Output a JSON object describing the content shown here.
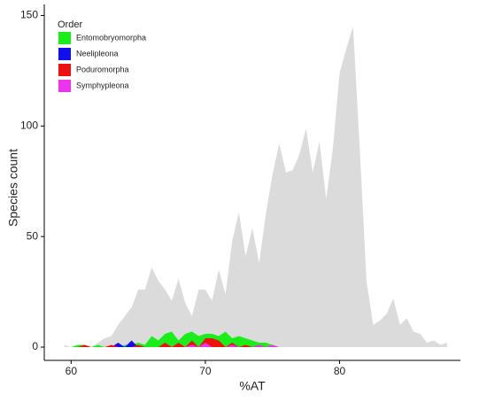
{
  "chart_data": {
    "type": "area",
    "x": [
      59.5,
      60,
      60.5,
      61,
      61.5,
      62,
      62.5,
      63,
      63.5,
      64,
      64.5,
      65,
      65.5,
      66,
      66.5,
      67,
      67.5,
      68,
      68.5,
      69,
      69.5,
      70,
      70.5,
      71,
      71.5,
      72,
      72.5,
      73,
      73.5,
      74,
      74.5,
      75,
      75.5,
      76,
      76.5,
      77,
      77.5,
      78,
      78.5,
      79,
      79.5,
      80,
      80.5,
      81,
      81.5,
      82,
      82.5,
      83,
      83.5,
      84,
      84.5,
      85,
      85.5,
      86,
      86.5,
      87,
      87.5,
      88
    ],
    "series": [
      {
        "color": "#dcdbdb",
        "values": [
          1,
          0,
          0,
          0,
          0,
          2,
          4,
          5,
          10,
          14,
          18,
          26,
          26,
          36,
          30,
          26,
          21,
          31,
          20,
          14,
          26,
          26,
          21,
          35,
          24,
          48,
          61,
          41,
          54,
          38,
          60,
          78,
          92,
          79,
          80,
          87,
          99,
          79,
          93,
          67,
          90,
          124,
          135,
          145,
          90,
          30,
          10,
          12,
          15,
          22,
          10,
          13,
          7,
          6,
          2,
          3,
          1,
          2
        ]
      },
      {
        "name": "Entomobryomorpha",
        "color": "#1aee1a",
        "values": [
          0,
          0,
          1,
          1,
          0,
          1,
          0,
          0,
          0,
          1,
          1,
          2,
          1,
          5,
          3,
          6,
          7,
          3,
          6,
          7,
          5,
          6,
          6,
          5,
          7,
          4,
          5,
          4,
          3,
          2,
          2,
          1,
          0,
          0,
          0,
          0,
          0,
          0,
          0,
          0,
          0,
          0,
          0,
          0,
          0,
          0,
          0,
          0,
          0,
          0,
          0,
          0,
          0,
          0,
          0,
          0,
          0,
          0
        ]
      },
      {
        "name": "Neelipleona",
        "color": "#1010ee",
        "values": [
          0,
          0,
          0,
          0,
          0,
          0,
          0,
          0,
          2,
          0,
          3,
          0,
          0,
          0,
          0,
          0,
          0,
          0,
          0,
          0,
          0,
          0,
          0,
          0,
          0,
          0,
          0,
          0,
          0,
          0,
          0,
          0,
          0,
          0,
          0,
          0,
          0,
          0,
          0,
          0,
          0,
          0,
          0,
          0,
          0,
          0,
          0,
          0,
          0,
          0,
          0,
          0,
          0,
          0,
          0,
          0,
          0,
          0
        ]
      },
      {
        "name": "Poduromorpha",
        "color": "#ee1010",
        "values": [
          0,
          0,
          0,
          1,
          0,
          0,
          0,
          1,
          0,
          0,
          0,
          1,
          0,
          0,
          0,
          2,
          0,
          2,
          0,
          3,
          0,
          4,
          4,
          3,
          0,
          2,
          0,
          1,
          0,
          1,
          0,
          0,
          0,
          0,
          0,
          0,
          0,
          0,
          0,
          0,
          0,
          0,
          0,
          0,
          0,
          0,
          0,
          0,
          0,
          0,
          0,
          0,
          0,
          0,
          0,
          0,
          0,
          0
        ]
      },
      {
        "name": "Symphypleona",
        "color": "#ee33ee",
        "values": [
          0,
          0,
          0,
          0,
          0,
          0,
          0,
          0,
          0,
          0,
          0,
          0,
          0,
          0,
          0,
          0,
          0,
          0,
          0,
          1,
          0,
          2,
          0,
          0,
          0,
          1,
          0,
          0,
          0,
          1,
          0,
          1,
          0,
          0,
          0,
          0,
          0,
          0,
          0,
          0,
          0,
          0,
          0,
          0,
          0,
          0,
          0,
          0,
          0,
          0,
          0,
          0,
          0,
          0,
          0,
          0,
          0,
          0
        ]
      }
    ],
    "legend_title": "Order",
    "x_label": "%AT",
    "y_label": "Species count",
    "xlim": [
      58,
      89
    ],
    "ylim": [
      -6,
      155
    ],
    "xticks": [
      60,
      70,
      80
    ],
    "yticks": [
      0,
      50,
      100,
      150
    ],
    "legend": "top-left"
  }
}
